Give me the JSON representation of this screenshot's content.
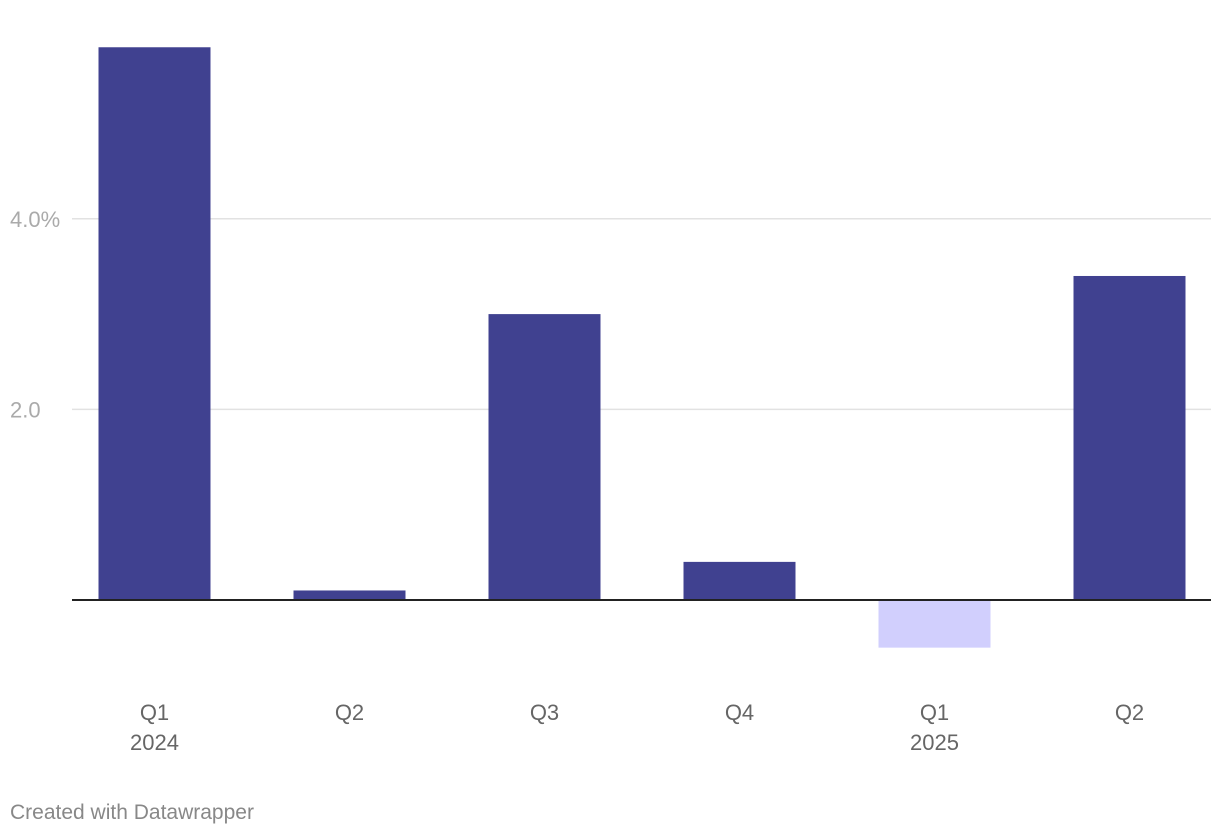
{
  "chart_data": {
    "type": "bar",
    "categories": [
      "Q1",
      "Q2",
      "Q3",
      "Q4",
      "Q1",
      "Q2"
    ],
    "year_labels": [
      "2024",
      "",
      "",
      "",
      "2025",
      ""
    ],
    "values": [
      5.8,
      0.1,
      3.0,
      0.4,
      -0.5,
      3.4
    ],
    "ylim": [
      -0.5,
      5.8
    ],
    "y_ticks": [
      {
        "value": 4.0,
        "label": "4.0%"
      },
      {
        "value": 2.0,
        "label": "2.0"
      }
    ],
    "title": "",
    "xlabel": "",
    "ylabel": "",
    "grid": true,
    "colors": {
      "positive": "#404190",
      "negative": "#d1cffd",
      "grid": "#e2e2e2",
      "baseline": "#222222"
    }
  },
  "footer": {
    "credit": "Created with Datawrapper"
  }
}
